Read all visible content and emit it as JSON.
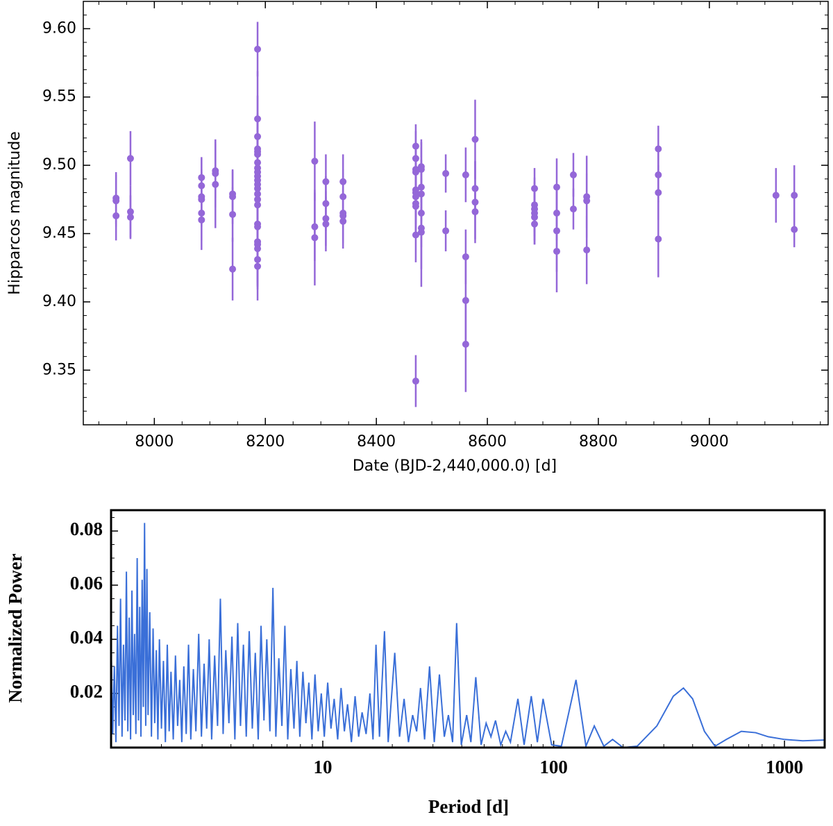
{
  "chart_data": [
    {
      "type": "scatter",
      "xlabel": "Date (BJD-2,440,000.0) [d]",
      "ylabel": "Hipparcos magnitude",
      "xlim": [
        7872,
        9214
      ],
      "ylim": [
        9.31,
        9.62
      ],
      "xticks": [
        8000,
        8200,
        8400,
        8600,
        8800,
        9000
      ],
      "yticks": [
        9.35,
        {
          "value": 9.4,
          "label": "9.40"
        },
        9.45,
        {
          "value": 9.5,
          "label": "9.50"
        },
        9.55,
        {
          "value": 9.6,
          "label": "9.60"
        }
      ],
      "series": [
        {
          "color": "#9467d8",
          "x": [
            7931,
            7931,
            7931,
            7957,
            7957,
            7957,
            8085,
            8085,
            8085,
            8085,
            8085,
            8085,
            8110,
            8110,
            8110,
            8141,
            8141,
            8141,
            8141,
            8186,
            8186,
            8186,
            8186,
            8186,
            8186,
            8186,
            8186,
            8186,
            8186,
            8186,
            8186,
            8186,
            8186,
            8186,
            8186,
            8186,
            8186,
            8186,
            8186,
            8186,
            8186,
            8186,
            8289,
            8289,
            8289,
            8309,
            8309,
            8309,
            8309,
            8340,
            8340,
            8340,
            8340,
            8340,
            8471,
            8471,
            8471,
            8471,
            8471,
            8471,
            8471,
            8471,
            8471,
            8471,
            8471,
            8481,
            8481,
            8481,
            8481,
            8481,
            8481,
            8481,
            8525,
            8525,
            8561,
            8561,
            8561,
            8561,
            8578,
            8578,
            8578,
            8578,
            8685,
            8685,
            8685,
            8685,
            8685,
            8685,
            8725,
            8725,
            8725,
            8725,
            8755,
            8755,
            8779,
            8779,
            8779,
            8908,
            8908,
            8908,
            8908,
            9120,
            9153,
            9153
          ],
          "values": [
            9.476,
            9.474,
            9.463,
            9.505,
            9.466,
            9.462,
            9.491,
            9.485,
            9.477,
            9.475,
            9.465,
            9.46,
            9.496,
            9.494,
            9.486,
            9.479,
            9.477,
            9.464,
            9.424,
            9.585,
            9.534,
            9.521,
            9.512,
            9.51,
            9.508,
            9.502,
            9.498,
            9.495,
            9.492,
            9.489,
            9.486,
            9.483,
            9.479,
            9.475,
            9.471,
            9.457,
            9.455,
            9.444,
            9.442,
            9.439,
            9.431,
            9.426,
            9.503,
            9.455,
            9.447,
            9.488,
            9.472,
            9.461,
            9.457,
            9.488,
            9.477,
            9.465,
            9.463,
            9.459,
            9.514,
            9.505,
            9.497,
            9.495,
            9.482,
            9.48,
            9.477,
            9.472,
            9.47,
            9.449,
            9.342,
            9.499,
            9.497,
            9.484,
            9.479,
            9.465,
            9.454,
            9.451,
            9.494,
            9.452,
            9.493,
            9.433,
            9.401,
            9.369,
            9.519,
            9.483,
            9.473,
            9.466,
            9.483,
            9.471,
            9.468,
            9.465,
            9.462,
            9.457,
            9.484,
            9.465,
            9.452,
            9.437,
            9.493,
            9.468,
            9.477,
            9.474,
            9.438,
            9.512,
            9.493,
            9.48,
            9.446,
            9.478,
            9.478,
            9.453
          ],
          "errors": [
            0.019,
            0.019,
            0.018,
            0.02,
            0.019,
            0.016,
            0.015,
            0.02,
            0.02,
            0.02,
            0.02,
            0.022,
            0.02,
            0.025,
            0.032,
            0.017,
            0.02,
            0.02,
            0.023,
            0.02,
            0.035,
            0.03,
            0.025,
            0.025,
            0.03,
            0.03,
            0.03,
            0.03,
            0.03,
            0.03,
            0.03,
            0.03,
            0.03,
            0.03,
            0.03,
            0.03,
            0.03,
            0.03,
            0.03,
            0.03,
            0.03,
            0.015,
            0.029,
            0.025,
            0.035,
            0.02,
            0.02,
            0.02,
            0.02,
            0.02,
            0.02,
            0.02,
            0.02,
            0.02,
            0.016,
            0.02,
            0.02,
            0.02,
            0.02,
            0.02,
            0.02,
            0.02,
            0.02,
            0.02,
            0.019,
            0.02,
            0.02,
            0.02,
            0.02,
            0.025,
            0.03,
            0.04,
            0.014,
            0.015,
            0.02,
            0.02,
            0.03,
            0.035,
            0.029,
            0.02,
            0.03,
            0.02,
            0.015,
            0.02,
            0.02,
            0.02,
            0.02,
            0.015,
            0.021,
            0.02,
            0.03,
            0.03,
            0.016,
            0.015,
            0.03,
            0.02,
            0.025,
            0.017,
            0.02,
            0.02,
            0.028,
            0.02,
            0.022,
            0.013
          ]
        }
      ]
    },
    {
      "type": "line",
      "xscale": "log",
      "xlabel": "Period [d]",
      "ylabel": "Normalized Power",
      "color": "#3a6fd8",
      "xlim": [
        1.21,
        1493
      ],
      "ylim": [
        0,
        0.0877
      ],
      "xticks": [
        10,
        100,
        1000
      ],
      "yticks": [
        0.02,
        0.04,
        0.06,
        0.08
      ],
      "x": [
        1.21,
        1.23,
        1.25,
        1.27,
        1.29,
        1.31,
        1.33,
        1.35,
        1.37,
        1.39,
        1.41,
        1.43,
        1.45,
        1.47,
        1.49,
        1.51,
        1.53,
        1.55,
        1.57,
        1.59,
        1.61,
        1.63,
        1.65,
        1.67,
        1.69,
        1.71,
        1.73,
        1.75,
        1.78,
        1.81,
        1.84,
        1.87,
        1.9,
        1.93,
        1.96,
        2,
        2.04,
        2.08,
        2.12,
        2.16,
        2.2,
        2.25,
        2.3,
        2.35,
        2.4,
        2.45,
        2.5,
        2.56,
        2.62,
        2.68,
        2.75,
        2.82,
        2.9,
        2.98,
        3.06,
        3.14,
        3.22,
        3.3,
        3.4,
        3.5,
        3.6,
        3.7,
        3.8,
        3.92,
        4.04,
        4.16,
        4.28,
        4.4,
        4.53,
        4.66,
        4.8,
        4.95,
        5.1,
        5.25,
        5.4,
        5.56,
        5.72,
        5.9,
        6.08,
        6.26,
        6.45,
        6.65,
        6.85,
        7.05,
        7.27,
        7.5,
        7.72,
        7.95,
        8.2,
        8.45,
        8.7,
        8.97,
        9.25,
        9.55,
        9.85,
        10.15,
        10.5,
        10.85,
        11.2,
        11.6,
        12,
        12.4,
        12.8,
        13.3,
        13.8,
        14.3,
        14.8,
        15.4,
        16,
        16.5,
        17,
        17.6,
        18.5,
        19.2,
        20.5,
        21.5,
        22.5,
        23.5,
        24.5,
        25.5,
        26.5,
        27.6,
        29,
        30.4,
        32,
        33.6,
        35,
        36.5,
        38,
        39.8,
        42,
        43.8,
        46,
        48.5,
        51,
        53.5,
        56,
        59,
        62,
        65,
        70,
        74.5,
        80,
        85,
        90,
        98,
        108,
        125,
        138,
        150,
        165,
        180,
        200,
        230,
        280,
        330,
        365,
        400,
        450,
        500,
        560,
        650,
        750,
        850,
        1000,
        1200,
        1493
      ],
      "values": [
        0.04,
        0.005,
        0.03,
        0.002,
        0.045,
        0.008,
        0.055,
        0.004,
        0.038,
        0.01,
        0.065,
        0.006,
        0.048,
        0.003,
        0.058,
        0.012,
        0.042,
        0.005,
        0.07,
        0.01,
        0.052,
        0.004,
        0.062,
        0.015,
        0.083,
        0.008,
        0.066,
        0.012,
        0.05,
        0.004,
        0.044,
        0.009,
        0.036,
        0.003,
        0.04,
        0.007,
        0.032,
        0.002,
        0.038,
        0.006,
        0.028,
        0.003,
        0.034,
        0.008,
        0.025,
        0.002,
        0.03,
        0.005,
        0.038,
        0.003,
        0.029,
        0.006,
        0.042,
        0.004,
        0.031,
        0.007,
        0.04,
        0.003,
        0.034,
        0.008,
        0.055,
        0.005,
        0.036,
        0.009,
        0.041,
        0.003,
        0.046,
        0.008,
        0.038,
        0.004,
        0.043,
        0.007,
        0.035,
        0.003,
        0.045,
        0.01,
        0.04,
        0.006,
        0.059,
        0.004,
        0.033,
        0.008,
        0.045,
        0.003,
        0.029,
        0.007,
        0.032,
        0.004,
        0.028,
        0.009,
        0.024,
        0.003,
        0.027,
        0.006,
        0.02,
        0.004,
        0.024,
        0.007,
        0.018,
        0.003,
        0.022,
        0.006,
        0.016,
        0.002,
        0.019,
        0.004,
        0.013,
        0.005,
        0.02,
        0.003,
        0.038,
        0.004,
        0.043,
        0.002,
        0.035,
        0.004,
        0.018,
        0.002,
        0.012,
        0.006,
        0.022,
        0.003,
        0.03,
        0.002,
        0.027,
        0.004,
        0.012,
        0.002,
        0.046,
        0.001,
        0.012,
        0.002,
        0.026,
        0.001,
        0.009,
        0.004,
        0.01,
        0.001,
        0.006,
        0.002,
        0.018,
        0.001,
        0.019,
        0.002,
        0.018,
        0.001,
        0.0005,
        0.025,
        0.0005,
        0.008,
        0.0005,
        0.003,
        0,
        0.0005,
        0.008,
        0.019,
        0.022,
        0.018,
        0.006,
        0.0005,
        0.003,
        0.006,
        0.0055,
        0.004,
        0.003,
        0.0025,
        0.0028
      ]
    }
  ]
}
